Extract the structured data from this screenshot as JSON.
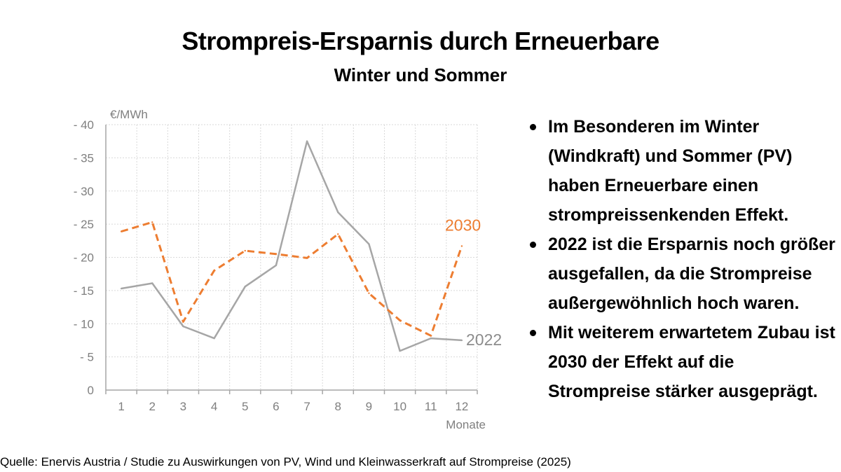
{
  "title": "Strompreis-Ersparnis durch Erneuerbare",
  "subtitle": "Winter und Sommer",
  "bullets": [
    "Im Besonderen im Winter (Windkraft) und Sommer (PV) haben Erneuerbare einen strompreissenkenden Effekt.",
    "2022 ist die Ersparnis noch größer ausgefallen, da die Strompreise außergewöhnlich hoch waren.",
    "Mit weiterem erwartetem Zubau ist 2030 der Effekt auf die Strompreise stärker ausgeprägt."
  ],
  "source": "Quelle: Enervis Austria / Studie zu Auswirkungen von PV, Wind und Kleinwasserkraft auf Strompreise (2025)",
  "chart_data": {
    "type": "line",
    "xlabel": "Monate",
    "ylabel": "€/MWh",
    "ylim": [
      0,
      40
    ],
    "yticks": [
      0,
      5,
      10,
      15,
      20,
      25,
      30,
      35,
      40
    ],
    "ytick_labels": [
      "0",
      "- 5",
      "- 10",
      "- 15",
      "- 20",
      "- 25",
      "- 30",
      "- 35",
      "- 40"
    ],
    "categories": [
      "1",
      "2",
      "3",
      "4",
      "5",
      "6",
      "7",
      "8",
      "9",
      "10",
      "11",
      "12"
    ],
    "grid": true,
    "series": [
      {
        "name": "2022",
        "values": [
          15.3,
          16.1,
          9.6,
          7.8,
          15.6,
          18.8,
          37.5,
          26.8,
          22.0,
          5.9,
          7.8,
          7.5
        ],
        "color": "#a6a6a6",
        "dash": "solid"
      },
      {
        "name": "2030",
        "values": [
          23.9,
          25.3,
          10.3,
          18.0,
          21.0,
          20.5,
          19.9,
          23.5,
          14.6,
          10.5,
          8.2,
          21.7
        ],
        "color": "#ed7d31",
        "dash": "dashed"
      }
    ]
  }
}
